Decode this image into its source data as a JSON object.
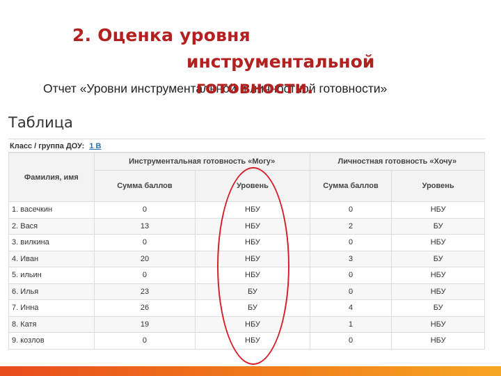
{
  "slide": {
    "title_line1": "2. Оценка уровня",
    "title_line2": "инструментальной",
    "title_line3": "готовности.",
    "subtitle": "Отчет «Уровни инструментальной и личностной готовности»",
    "accent_color": "#b32020",
    "oval_color": "#d61f2b"
  },
  "table_section": {
    "heading": "Таблица",
    "class_label": "Класс / группа ДОУ:",
    "class_value": "1 В",
    "columns": {
      "name": "Фамилия, имя",
      "instrumental_group": "Инструментальная готовность «Могу»",
      "personal_group": "Личностная готовность «Хочу»",
      "sum": "Сумма баллов",
      "level": "Уровень"
    },
    "rows": [
      {
        "name": "1. васечкин",
        "i_sum": "0",
        "i_level": "НБУ",
        "p_sum": "0",
        "p_level": "НБУ"
      },
      {
        "name": "2. Вася",
        "i_sum": "13",
        "i_level": "НБУ",
        "p_sum": "2",
        "p_level": "БУ"
      },
      {
        "name": "3. вилкина",
        "i_sum": "0",
        "i_level": "НБУ",
        "p_sum": "0",
        "p_level": "НБУ"
      },
      {
        "name": "4. Иван",
        "i_sum": "20",
        "i_level": "НБУ",
        "p_sum": "3",
        "p_level": "БУ"
      },
      {
        "name": "5. ильин",
        "i_sum": "0",
        "i_level": "НБУ",
        "p_sum": "0",
        "p_level": "НБУ"
      },
      {
        "name": "6. Илья",
        "i_sum": "23",
        "i_level": "БУ",
        "p_sum": "0",
        "p_level": "НБУ"
      },
      {
        "name": "7. Инна",
        "i_sum": "26",
        "i_level": "БУ",
        "p_sum": "4",
        "p_level": "БУ"
      },
      {
        "name": "8. Катя",
        "i_sum": "19",
        "i_level": "НБУ",
        "p_sum": "1",
        "p_level": "НБУ"
      },
      {
        "name": "9. козлов",
        "i_sum": "0",
        "i_level": "НБУ",
        "p_sum": "0",
        "p_level": "НБУ"
      }
    ]
  }
}
